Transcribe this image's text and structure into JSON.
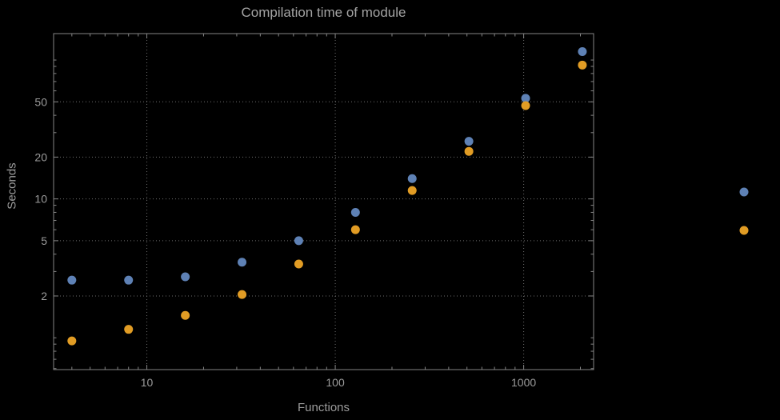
{
  "chart_data": {
    "type": "scatter",
    "title": "Compilation time of module",
    "xlabel": "Functions",
    "ylabel": "Seconds",
    "x_scale": "log",
    "y_scale": "log",
    "x": [
      4,
      8,
      16,
      32,
      64,
      128,
      256,
      512,
      1024,
      2048
    ],
    "series": [
      {
        "name": "series-blue",
        "color": "#5E81B5",
        "values": [
          2.6,
          2.6,
          2.75,
          3.5,
          5.0,
          8.0,
          14,
          26,
          53,
          115
        ]
      },
      {
        "name": "series-orange",
        "color": "#E19C24",
        "values": [
          0.95,
          1.15,
          1.45,
          2.05,
          3.4,
          6.0,
          11.5,
          22,
          47,
          92
        ]
      }
    ],
    "xlim": [
      3.2,
      2350
    ],
    "ylim": [
      0.59,
      155
    ],
    "x_ticks": [
      10,
      100,
      1000
    ],
    "y_ticks": [
      2,
      5,
      10,
      20,
      50
    ],
    "grid": "dotted",
    "legend": {
      "position": "right",
      "entries": [
        {
          "color": "#5E81B5",
          "label": ""
        },
        {
          "color": "#E19C24",
          "label": ""
        }
      ]
    }
  },
  "colors": {
    "background": "#000000",
    "frame": "#858585",
    "grid": "#6e6e6e",
    "tick_text": "#9b9b9b",
    "title_text": "#a3a3a3"
  }
}
